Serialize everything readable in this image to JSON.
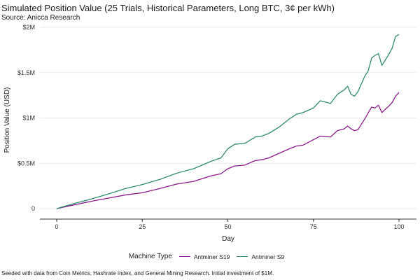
{
  "chart_data": {
    "type": "line",
    "title": "Simulated Position Value (25 Trials, Historical Parameters, Long BTC, 3¢ per kWh)",
    "subtitle": "Source: Anicca Research",
    "caption": "Seeded with data from Coin Metrics, Hashrate Index, and General Mining Research. Initial investment of $1M.",
    "xlabel": "Day",
    "ylabel": "Position Value (USD)",
    "xlim": [
      0,
      100
    ],
    "ylim": [
      0,
      2000000
    ],
    "x_ticks": [
      {
        "value": 0,
        "label": "0"
      },
      {
        "value": 25,
        "label": "25"
      },
      {
        "value": 50,
        "label": "50"
      },
      {
        "value": 75,
        "label": "75"
      },
      {
        "value": 100,
        "label": "100"
      }
    ],
    "y_ticks": [
      {
        "value": 0,
        "label": "0"
      },
      {
        "value": 500000,
        "label": "$0.5M"
      },
      {
        "value": 1000000,
        "label": "$1M"
      },
      {
        "value": 1500000,
        "label": "$1.5M"
      },
      {
        "value": 2000000,
        "label": "$2M"
      }
    ],
    "grid": "horizontal",
    "legend": {
      "title": "Machine Type",
      "position": "bottom"
    },
    "series": [
      {
        "name": "Antminer S19",
        "color": "#8b1a8b",
        "points": [
          [
            0,
            0
          ],
          [
            5,
            40000
          ],
          [
            10,
            80000
          ],
          [
            15,
            115000
          ],
          [
            20,
            150000
          ],
          [
            25,
            175000
          ],
          [
            30,
            220000
          ],
          [
            35,
            270000
          ],
          [
            40,
            300000
          ],
          [
            45,
            360000
          ],
          [
            48,
            385000
          ],
          [
            50,
            440000
          ],
          [
            52,
            470000
          ],
          [
            55,
            480000
          ],
          [
            58,
            530000
          ],
          [
            60,
            540000
          ],
          [
            62,
            560000
          ],
          [
            65,
            610000
          ],
          [
            68,
            660000
          ],
          [
            70,
            690000
          ],
          [
            72,
            700000
          ],
          [
            75,
            760000
          ],
          [
            77,
            800000
          ],
          [
            80,
            790000
          ],
          [
            82,
            860000
          ],
          [
            84,
            880000
          ],
          [
            85,
            910000
          ],
          [
            86,
            880000
          ],
          [
            87,
            860000
          ],
          [
            88,
            870000
          ],
          [
            90,
            990000
          ],
          [
            92,
            1120000
          ],
          [
            93,
            1110000
          ],
          [
            94,
            1140000
          ],
          [
            95,
            1060000
          ],
          [
            97,
            1130000
          ],
          [
            98,
            1170000
          ],
          [
            99,
            1240000
          ],
          [
            100,
            1280000
          ]
        ]
      },
      {
        "name": "Antminer S9",
        "color": "#2e8b6e",
        "points": [
          [
            0,
            0
          ],
          [
            5,
            55000
          ],
          [
            10,
            105000
          ],
          [
            15,
            160000
          ],
          [
            20,
            220000
          ],
          [
            25,
            265000
          ],
          [
            30,
            320000
          ],
          [
            35,
            390000
          ],
          [
            40,
            440000
          ],
          [
            45,
            520000
          ],
          [
            48,
            560000
          ],
          [
            50,
            660000
          ],
          [
            52,
            710000
          ],
          [
            55,
            720000
          ],
          [
            58,
            790000
          ],
          [
            60,
            800000
          ],
          [
            62,
            830000
          ],
          [
            65,
            900000
          ],
          [
            68,
            990000
          ],
          [
            70,
            1040000
          ],
          [
            72,
            1060000
          ],
          [
            75,
            1110000
          ],
          [
            77,
            1190000
          ],
          [
            80,
            1160000
          ],
          [
            82,
            1260000
          ],
          [
            84,
            1310000
          ],
          [
            85,
            1350000
          ],
          [
            86,
            1260000
          ],
          [
            87,
            1240000
          ],
          [
            88,
            1290000
          ],
          [
            90,
            1460000
          ],
          [
            91,
            1520000
          ],
          [
            92,
            1660000
          ],
          [
            93,
            1690000
          ],
          [
            94,
            1710000
          ],
          [
            95,
            1580000
          ],
          [
            97,
            1700000
          ],
          [
            98,
            1770000
          ],
          [
            99,
            1900000
          ],
          [
            100,
            1920000
          ]
        ]
      }
    ]
  }
}
